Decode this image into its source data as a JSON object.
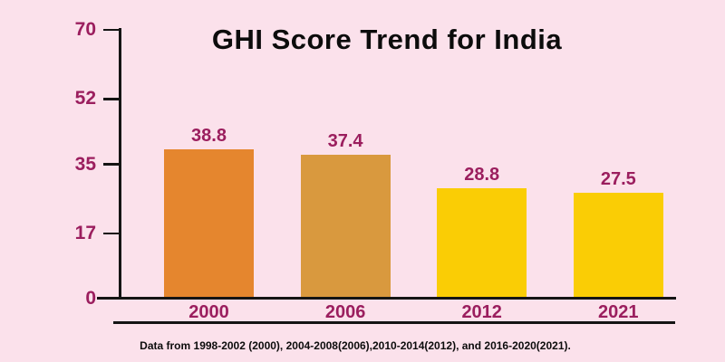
{
  "colors": {
    "background": "#fbe1eb",
    "accent": "#9b1e5e",
    "axis": "#141414"
  },
  "footnote": "Data from 1998-2002 (2000), 2004-2008(2006),2010-2014(2012), and 2016-2020(2021).",
  "chart_data": {
    "type": "bar",
    "title": "GHI Score Trend for India",
    "categories": [
      "2000",
      "2006",
      "2012",
      "2021"
    ],
    "values": [
      38.8,
      37.4,
      28.8,
      27.5
    ],
    "value_labels": [
      "38.8",
      "37.4",
      "28.8",
      "27.5"
    ],
    "bar_colors": [
      "#e5862e",
      "#d9993e",
      "#facd05",
      "#facd05"
    ],
    "y_ticks": [
      0,
      17,
      35,
      52,
      70
    ],
    "ylim": [
      0,
      70
    ],
    "xlabel": "",
    "ylabel": "",
    "grid": false,
    "legend": false,
    "label_color": "#9b1e5e",
    "title_color": "#0c0c0c"
  }
}
